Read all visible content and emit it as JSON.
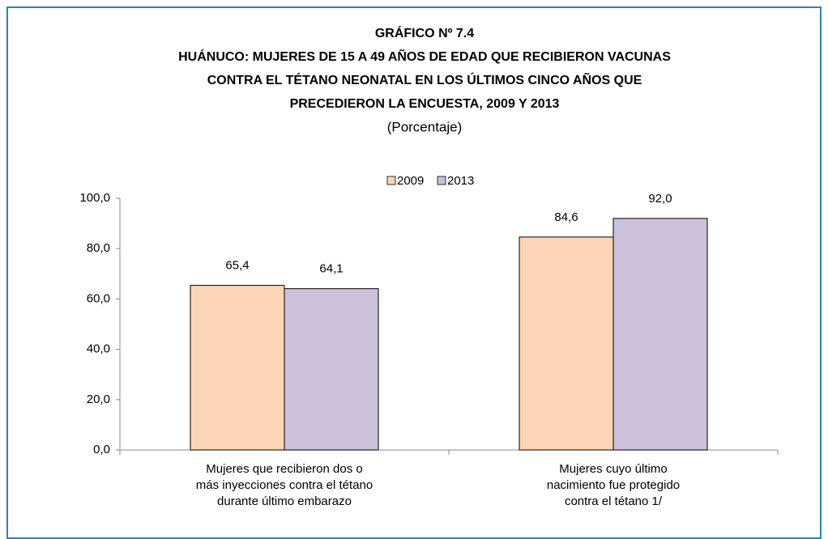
{
  "chart_data": {
    "type": "bar",
    "title": [
      "GRÁFICO Nº 7.4",
      "HUÁNUCO: MUJERES DE 15 A 49 AÑOS DE EDAD QUE RECIBIERON VACUNAS",
      "CONTRA EL TÉTANO NEONATAL EN LOS ÚLTIMOS CINCO AÑOS QUE",
      "PRECEDIERON LA ENCUESTA, 2009 Y 2013"
    ],
    "subtitle": "(Porcentaje)",
    "categories": [
      [
        "Mujeres que recibieron dos o",
        "más inyecciones contra el tétano",
        "durante último embarazo"
      ],
      [
        "Mujeres cuyo último",
        "nacimiento fue protegido",
        "contra el tétano 1/"
      ]
    ],
    "series": [
      {
        "name": "2009",
        "color": "#fcd5b5",
        "values": [
          65.4,
          84.6
        ],
        "value_labels": [
          "65,4",
          "84,6"
        ]
      },
      {
        "name": "2013",
        "color": "#ccc0da",
        "values": [
          64.1,
          92.0
        ],
        "value_labels": [
          "64,1",
          "92,0"
        ]
      }
    ],
    "ylim": [
      0,
      100
    ],
    "yticks": [
      {
        "value": 0,
        "label": "0,0"
      },
      {
        "value": 20,
        "label": "20,0"
      },
      {
        "value": 40,
        "label": "40,0"
      },
      {
        "value": 60,
        "label": "60,0"
      },
      {
        "value": 80,
        "label": "80,0"
      },
      {
        "value": 100,
        "label": "100,0"
      }
    ],
    "grid": false,
    "legend": "top"
  }
}
